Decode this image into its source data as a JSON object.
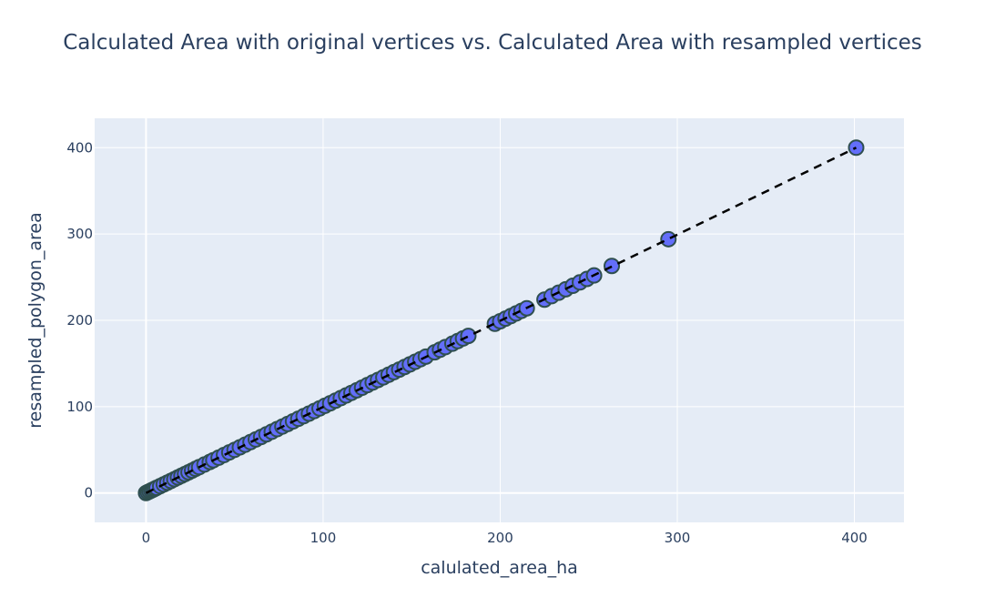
{
  "chart_data": {
    "type": "scatter",
    "title": "Calculated Area with original vertices vs. Calculated Area with resampled vertices",
    "xlabel": "calulated_area_ha",
    "ylabel": "resampled_polygon_area",
    "xlim": [
      -29,
      428
    ],
    "ylim": [
      -34,
      434
    ],
    "xticks": [
      0,
      100,
      200,
      300,
      400
    ],
    "yticks": [
      0,
      100,
      200,
      300,
      400
    ],
    "grid": true,
    "colors": {
      "plot_bg": "#e5ecf6",
      "marker_fill": "#636efa",
      "marker_line": "#2f4f4f",
      "reference_line": "#000000",
      "text": "#2a3f5f"
    },
    "reference_line": {
      "style": "dashed",
      "x": [
        0,
        401
      ],
      "y": [
        0,
        400
      ]
    },
    "series": [
      {
        "x": [
          0,
          1,
          2,
          3,
          4,
          5,
          6,
          8,
          10,
          12,
          14,
          16,
          18,
          20,
          22,
          24,
          26,
          28,
          30,
          33,
          36,
          38,
          41,
          44,
          47,
          50,
          53,
          56,
          59,
          62,
          65,
          68,
          71,
          74,
          77,
          80,
          83,
          86,
          89,
          92,
          95,
          98,
          101,
          104,
          107,
          110,
          113,
          116,
          119,
          122,
          125,
          128,
          131,
          134,
          137,
          140,
          143,
          146,
          149,
          152,
          155,
          158,
          163,
          166,
          169,
          173,
          176,
          179,
          182,
          197,
          200,
          203,
          206,
          209,
          212,
          215,
          225,
          229,
          233,
          237,
          241,
          245,
          249,
          253,
          263,
          295,
          401
        ],
        "y": [
          0,
          1,
          2,
          3,
          4,
          5,
          6,
          8,
          10,
          12,
          14,
          16,
          18,
          20,
          22,
          24,
          26,
          28,
          30,
          33,
          36,
          38,
          41,
          44,
          47,
          50,
          53,
          56,
          59,
          62,
          65,
          68,
          71,
          74,
          77,
          80,
          83,
          86,
          89,
          92,
          95,
          98,
          101,
          104,
          107,
          110,
          113,
          116,
          119,
          122,
          125,
          128,
          131,
          134,
          137,
          140,
          143,
          146,
          149,
          152,
          155,
          158,
          163,
          166,
          169,
          173,
          176,
          179,
          182,
          196,
          199,
          202,
          205,
          208,
          211,
          214,
          224,
          228,
          232,
          236,
          240,
          244,
          248,
          252,
          263,
          294,
          400
        ]
      }
    ]
  }
}
